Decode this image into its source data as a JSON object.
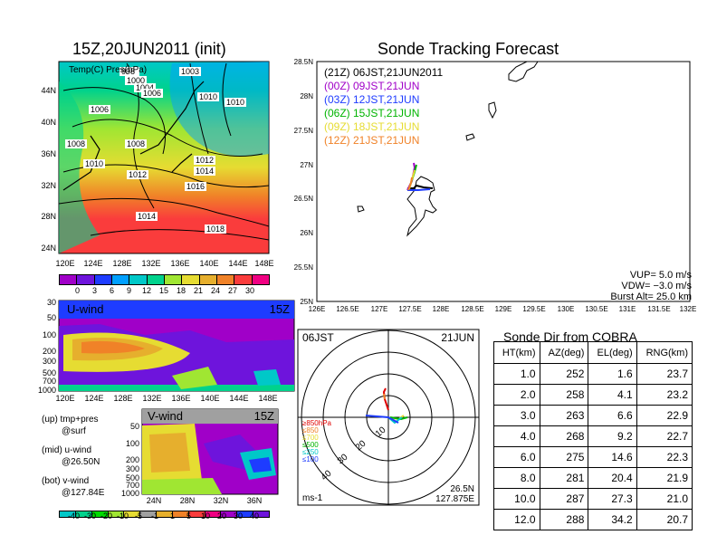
{
  "main_map": {
    "title": "15Z,20JUN2011 (init)",
    "label": "Temp(C) Pres(hPa)",
    "lat_ticks": [
      "24N",
      "28N",
      "32N",
      "36N",
      "40N",
      "44N"
    ],
    "lon_ticks": [
      "120E",
      "124E",
      "128E",
      "132E",
      "136E",
      "140E",
      "144E",
      "148E"
    ],
    "isobars": [
      "998",
      "1000",
      "1004",
      "1006",
      "1003",
      "1006",
      "1010",
      "1010",
      "1008",
      "1008",
      "1010",
      "1012",
      "1012",
      "1014",
      "1016",
      "1014",
      "1018"
    ],
    "temp_colorbar": [
      "0",
      "3",
      "6",
      "9",
      "12",
      "15",
      "18",
      "21",
      "24",
      "27",
      "30"
    ]
  },
  "u_wind": {
    "label": "U-wind",
    "time": "15Z",
    "p_ticks": [
      "30",
      "50",
      "100",
      "200",
      "300",
      "500",
      "700",
      "1000"
    ],
    "lon_ticks": [
      "120E",
      "124E",
      "128E",
      "132E",
      "136E",
      "140E",
      "144E",
      "148E"
    ]
  },
  "v_wind": {
    "label": "V-wind",
    "time": "15Z",
    "p_ticks": [
      "50",
      "100",
      "200",
      "300",
      "500",
      "700",
      "1000"
    ],
    "lat_ticks": [
      "24N",
      "28N",
      "32N",
      "36N"
    ]
  },
  "wind_colorbar": [
    "-40",
    "-30",
    "-20",
    "-10",
    "-5",
    "-1",
    "1",
    "5",
    "10",
    "20",
    "30",
    "40"
  ],
  "side_notes": [
    {
      "line1": "(up) tmp+pres",
      "line2": "@surf"
    },
    {
      "line1": "(mid) u-wind",
      "line2": "@26.50N"
    },
    {
      "line1": "(bot) v-wind",
      "line2": "@127.84E"
    }
  ],
  "tracking": {
    "title": "Sonde Tracking Forecast",
    "lat_ticks": [
      "25N",
      "25.5N",
      "26N",
      "26.5N",
      "27N",
      "27.5N",
      "28N",
      "28.5N"
    ],
    "lon_ticks": [
      "126E",
      "126.5E",
      "127E",
      "127.5E",
      "128E",
      "128.5E",
      "129E",
      "129.5E",
      "130E",
      "130.5E",
      "131E",
      "131.5E",
      "132E"
    ],
    "legend": [
      {
        "text": "(21Z)  06JST,21JUN2011",
        "color": "#000000"
      },
      {
        "text": "(00Z)  09JST,21JUN",
        "color": "#a000c8"
      },
      {
        "text": "(03Z)  12JST,21JUN",
        "color": "#1e3cff"
      },
      {
        "text": "(06Z)  15JST,21JUN",
        "color": "#00b400"
      },
      {
        "text": "(09Z)  18JST,21JUN",
        "color": "#e6dc32"
      },
      {
        "text": "(12Z)  21JST,21JUN",
        "color": "#f08228"
      }
    ],
    "params": [
      "VUP=  5.0 m/s",
      "VDW= −3.0 m/s",
      "Burst Alt=  25.0 km"
    ]
  },
  "polar": {
    "time_label": "06JST",
    "date_label": "21JUN",
    "ring_labels": [
      "10",
      "20",
      "30",
      "40"
    ],
    "unit": "ms-1",
    "loc_lat": "26.5N",
    "loc_lon": "127.875E",
    "levels": [
      {
        "text": "≥850hPa",
        "color": "#e00000"
      },
      {
        "text": "≤850",
        "color": "#f08228"
      },
      {
        "text": "≤700",
        "color": "#e6dc32"
      },
      {
        "text": "≤500",
        "color": "#00b400"
      },
      {
        "text": "≤250",
        "color": "#00c8c8"
      },
      {
        "text": "≤100",
        "color": "#1e3cff"
      }
    ]
  },
  "sonde_table": {
    "title": "Sonde Dir from COBRA",
    "headers": [
      "HT(km)",
      "AZ(deg)",
      "EL(deg)",
      "RNG(km)"
    ],
    "rows": [
      [
        "1.0",
        "252",
        "1.6",
        "23.7"
      ],
      [
        "2.0",
        "258",
        "4.1",
        "23.2"
      ],
      [
        "3.0",
        "263",
        "6.6",
        "22.9"
      ],
      [
        "4.0",
        "268",
        "9.2",
        "22.7"
      ],
      [
        "6.0",
        "275",
        "14.6",
        "22.3"
      ],
      [
        "8.0",
        "281",
        "20.4",
        "21.9"
      ],
      [
        "10.0",
        "287",
        "27.3",
        "21.0"
      ],
      [
        "12.0",
        "288",
        "34.2",
        "20.7"
      ]
    ]
  },
  "colors": {
    "temp_scale": [
      "#a000c8",
      "#6e14dc",
      "#1e3cff",
      "#00a0ff",
      "#00c8c8",
      "#00d28c",
      "#a0e632",
      "#e6dc32",
      "#e6af2d",
      "#f08228",
      "#fa3c3c",
      "#f00082"
    ],
    "wind_scale": [
      "#00c8c8",
      "#00d28c",
      "#00dc00",
      "#a0e632",
      "#e6dc32",
      "#a0a0a0",
      "#e6af2d",
      "#f08228",
      "#fa3c3c",
      "#f00082",
      "#a000c8",
      "#1e3cff",
      "#6e14dc"
    ]
  }
}
